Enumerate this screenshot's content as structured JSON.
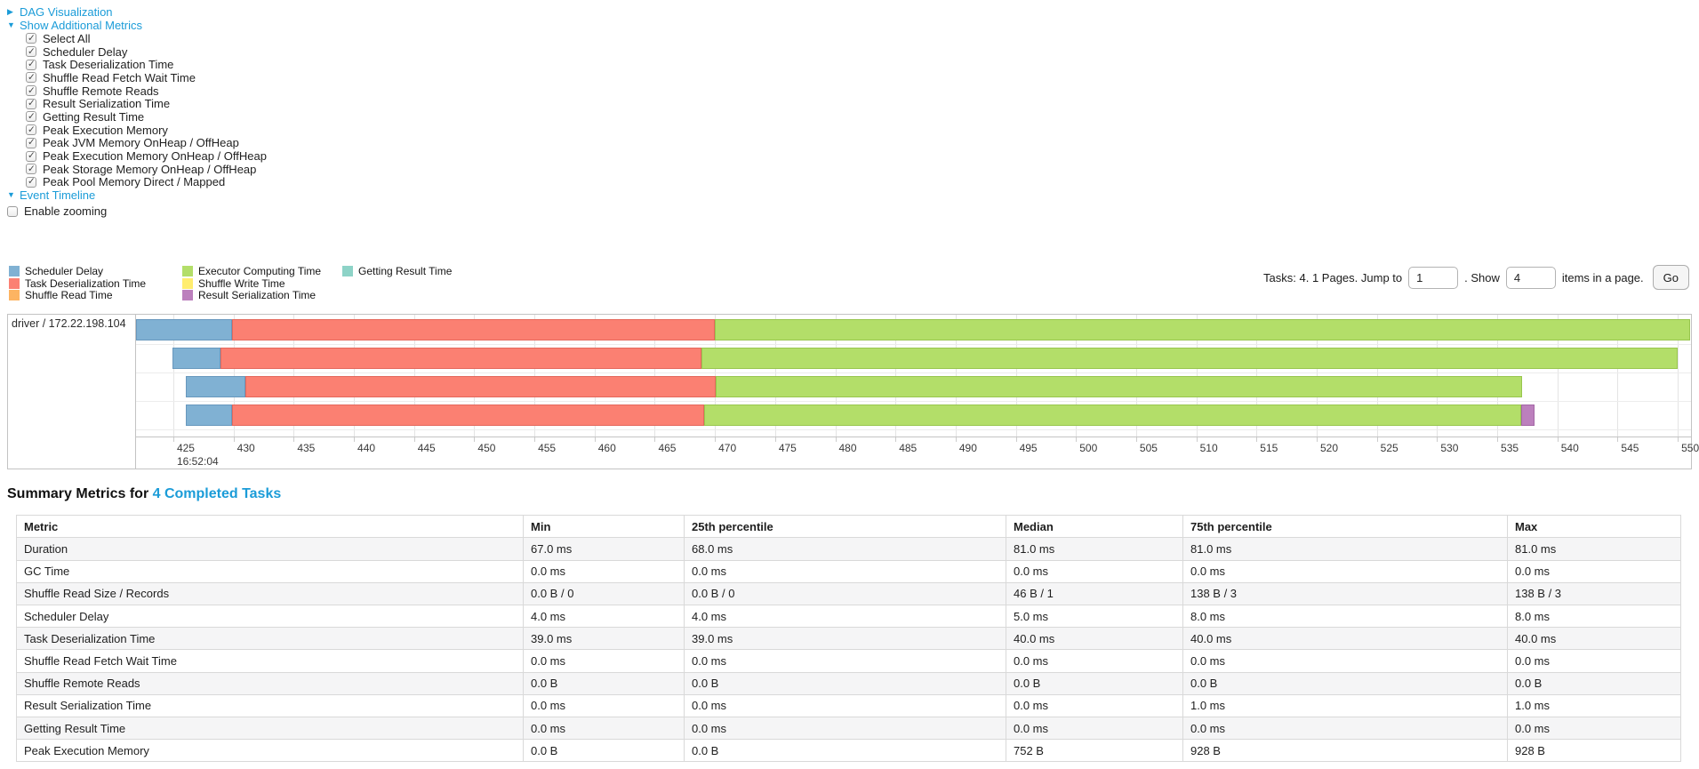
{
  "links": {
    "dag": "DAG Visualization",
    "show_metrics": "Show Additional Metrics",
    "event_timeline": "Event Timeline"
  },
  "metrics_panel": {
    "items": [
      "Select All",
      "Scheduler Delay",
      "Task Deserialization Time",
      "Shuffle Read Fetch Wait Time",
      "Shuffle Remote Reads",
      "Result Serialization Time",
      "Getting Result Time",
      "Peak Execution Memory",
      "Peak JVM Memory OnHeap / OffHeap",
      "Peak Execution Memory OnHeap / OffHeap",
      "Peak Storage Memory OnHeap / OffHeap",
      "Peak Pool Memory Direct / Mapped"
    ],
    "all_checked": true
  },
  "enable_zooming": {
    "label": "Enable zooming",
    "checked": false
  },
  "legend": {
    "columns": [
      [
        {
          "key": "scheduler_delay",
          "label": "Scheduler Delay"
        },
        {
          "key": "task_deserialization",
          "label": "Task Deserialization Time"
        },
        {
          "key": "shuffle_read",
          "label": "Shuffle Read Time"
        }
      ],
      [
        {
          "key": "executor_computing",
          "label": "Executor Computing Time"
        },
        {
          "key": "shuffle_write",
          "label": "Shuffle Write Time"
        },
        {
          "key": "result_serialization",
          "label": "Result Serialization Time"
        }
      ],
      [
        {
          "key": "getting_result",
          "label": "Getting Result Time"
        }
      ]
    ]
  },
  "pagination": {
    "info": "Tasks: 4. 1 Pages. Jump to",
    "jump_value": "1",
    "mid": ". Show",
    "show_value": "4",
    "suffix": "items in a page.",
    "go_label": "Go"
  },
  "chart_data": {
    "type": "timeline",
    "title": "Event Timeline",
    "executor_label": "driver / 172.22.198.104",
    "time_start_label": "16:52:04",
    "axis": {
      "min": 421.9,
      "max": 551.1,
      "ticks": [
        425,
        430,
        435,
        440,
        445,
        450,
        455,
        460,
        465,
        470,
        475,
        480,
        485,
        490,
        495,
        500,
        505,
        510,
        515,
        520,
        525,
        530,
        535,
        540,
        545,
        550
      ]
    },
    "colors": {
      "scheduler_delay": {
        "fill": "#80B1D3",
        "border": "#6898BD"
      },
      "task_deserialization": {
        "fill": "#FB8072",
        "border": "#e4685c"
      },
      "shuffle_read": {
        "fill": "#FDB462",
        "border": "#e09b4b"
      },
      "executor_computing": {
        "fill": "#B3DE69",
        "border": "#98c64e"
      },
      "shuffle_write": {
        "fill": "#FFED6F",
        "border": "#e3d055"
      },
      "result_serialization": {
        "fill": "#BC80BD",
        "border": "#a467a5"
      },
      "getting_result": {
        "fill": "#8DD3C7",
        "border": "#72baae"
      }
    },
    "tasks": [
      {
        "start_ms": 421.9,
        "segments": [
          {
            "key": "scheduler_delay",
            "ms": 8.0
          },
          {
            "key": "task_deserialization",
            "ms": 40.1
          },
          {
            "key": "executor_computing",
            "ms": 81.0
          }
        ]
      },
      {
        "start_ms": 424.9,
        "segments": [
          {
            "key": "scheduler_delay",
            "ms": 4.0
          },
          {
            "key": "task_deserialization",
            "ms": 40.0
          },
          {
            "key": "executor_computing",
            "ms": 81.1
          }
        ]
      },
      {
        "start_ms": 426.0,
        "segments": [
          {
            "key": "scheduler_delay",
            "ms": 5.0
          },
          {
            "key": "task_deserialization",
            "ms": 39.1
          },
          {
            "key": "executor_computing",
            "ms": 67.0
          }
        ]
      },
      {
        "start_ms": 426.0,
        "segments": [
          {
            "key": "scheduler_delay",
            "ms": 3.9
          },
          {
            "key": "task_deserialization",
            "ms": 39.2
          },
          {
            "key": "executor_computing",
            "ms": 67.9
          },
          {
            "key": "result_serialization",
            "ms": 1.1
          }
        ]
      }
    ]
  },
  "summary": {
    "title_prefix": "Summary Metrics for ",
    "title_link": "4 Completed Tasks",
    "columns": [
      "Metric",
      "Min",
      "25th percentile",
      "Median",
      "75th percentile",
      "Max"
    ],
    "rows": [
      {
        "metric": "Duration",
        "values": [
          "67.0 ms",
          "68.0 ms",
          "81.0 ms",
          "81.0 ms",
          "81.0 ms"
        ]
      },
      {
        "metric": "GC Time",
        "values": [
          "0.0 ms",
          "0.0 ms",
          "0.0 ms",
          "0.0 ms",
          "0.0 ms"
        ]
      },
      {
        "metric": "Shuffle Read Size / Records",
        "values": [
          "0.0 B / 0",
          "0.0 B / 0",
          "46 B / 1",
          "138 B / 3",
          "138 B / 3"
        ]
      },
      {
        "metric": "Scheduler Delay",
        "values": [
          "4.0 ms",
          "4.0 ms",
          "5.0 ms",
          "8.0 ms",
          "8.0 ms"
        ]
      },
      {
        "metric": "Task Deserialization Time",
        "values": [
          "39.0 ms",
          "39.0 ms",
          "40.0 ms",
          "40.0 ms",
          "40.0 ms"
        ]
      },
      {
        "metric": "Shuffle Read Fetch Wait Time",
        "values": [
          "0.0 ms",
          "0.0 ms",
          "0.0 ms",
          "0.0 ms",
          "0.0 ms"
        ]
      },
      {
        "metric": "Shuffle Remote Reads",
        "values": [
          "0.0 B",
          "0.0 B",
          "0.0 B",
          "0.0 B",
          "0.0 B"
        ]
      },
      {
        "metric": "Result Serialization Time",
        "values": [
          "0.0 ms",
          "0.0 ms",
          "0.0 ms",
          "1.0 ms",
          "1.0 ms"
        ]
      },
      {
        "metric": "Getting Result Time",
        "values": [
          "0.0 ms",
          "0.0 ms",
          "0.0 ms",
          "0.0 ms",
          "0.0 ms"
        ]
      },
      {
        "metric": "Peak Execution Memory",
        "values": [
          "0.0 B",
          "0.0 B",
          "752 B",
          "928 B",
          "928 B"
        ]
      }
    ]
  }
}
